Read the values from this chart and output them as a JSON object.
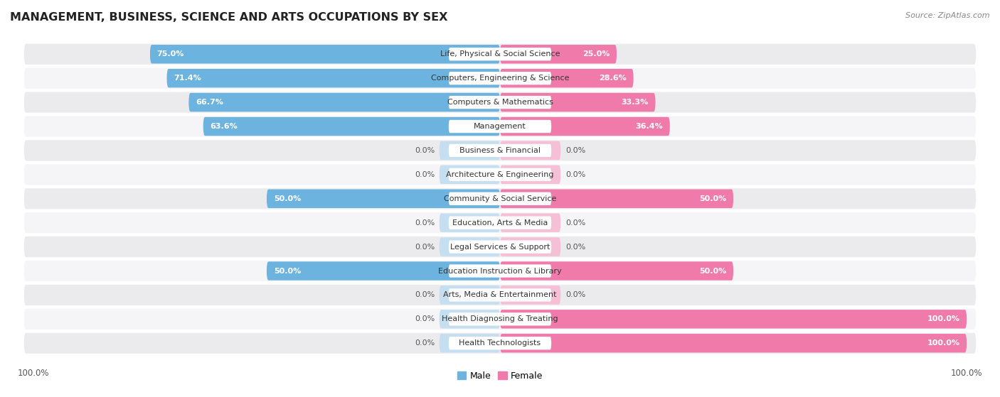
{
  "title": "MANAGEMENT, BUSINESS, SCIENCE AND ARTS OCCUPATIONS BY SEX",
  "source": "Source: ZipAtlas.com",
  "categories": [
    "Life, Physical & Social Science",
    "Computers, Engineering & Science",
    "Computers & Mathematics",
    "Management",
    "Business & Financial",
    "Architecture & Engineering",
    "Community & Social Service",
    "Education, Arts & Media",
    "Legal Services & Support",
    "Education Instruction & Library",
    "Arts, Media & Entertainment",
    "Health Diagnosing & Treating",
    "Health Technologists"
  ],
  "male": [
    75.0,
    71.4,
    66.7,
    63.6,
    0.0,
    0.0,
    50.0,
    0.0,
    0.0,
    50.0,
    0.0,
    0.0,
    0.0
  ],
  "female": [
    25.0,
    28.6,
    33.3,
    36.4,
    0.0,
    0.0,
    50.0,
    0.0,
    0.0,
    50.0,
    0.0,
    100.0,
    100.0
  ],
  "male_color": "#6db3e0",
  "female_color": "#f07bab",
  "male_color_light": "#c5dff0",
  "female_color_light": "#f5c0d5",
  "row_bg_odd": "#ebebed",
  "row_bg_even": "#f5f5f7",
  "center_label_bg": "#ffffff",
  "title_fontsize": 11.5,
  "bar_label_fontsize": 8,
  "label_fontsize": 8,
  "legend_fontsize": 9,
  "source_fontsize": 8,
  "xlim_left": -105,
  "xlim_right": 105,
  "axis_total": 100
}
